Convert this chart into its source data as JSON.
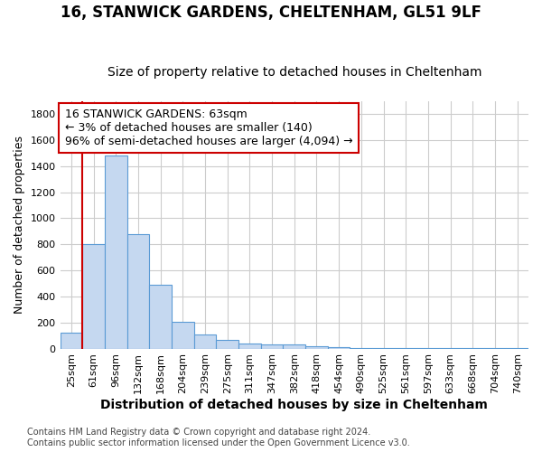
{
  "title1": "16, STANWICK GARDENS, CHELTENHAM, GL51 9LF",
  "title2": "Size of property relative to detached houses in Cheltenham",
  "xlabel": "Distribution of detached houses by size in Cheltenham",
  "ylabel": "Number of detached properties",
  "categories": [
    "25sqm",
    "61sqm",
    "96sqm",
    "132sqm",
    "168sqm",
    "204sqm",
    "239sqm",
    "275sqm",
    "311sqm",
    "347sqm",
    "382sqm",
    "418sqm",
    "454sqm",
    "490sqm",
    "525sqm",
    "561sqm",
    "597sqm",
    "633sqm",
    "668sqm",
    "704sqm",
    "740sqm"
  ],
  "values": [
    120,
    800,
    1480,
    880,
    490,
    205,
    105,
    65,
    40,
    35,
    30,
    20,
    10,
    5,
    4,
    3,
    2,
    2,
    1,
    2,
    1
  ],
  "bar_color": "#c5d8f0",
  "bar_edge_color": "#5b9bd5",
  "vline_color": "#cc0000",
  "vline_x_index": 1,
  "annotation_line1": "16 STANWICK GARDENS: 63sqm",
  "annotation_line2": "← 3% of detached houses are smaller (140)",
  "annotation_line3": "96% of semi-detached houses are larger (4,094) →",
  "annotation_box_color": "#ffffff",
  "annotation_box_edge": "#cc0000",
  "ylim": [
    0,
    1900
  ],
  "yticks": [
    0,
    200,
    400,
    600,
    800,
    1000,
    1200,
    1400,
    1600,
    1800
  ],
  "grid_color": "#cccccc",
  "footnote1": "Contains HM Land Registry data © Crown copyright and database right 2024.",
  "footnote2": "Contains public sector information licensed under the Open Government Licence v3.0.",
  "title1_fontsize": 12,
  "title2_fontsize": 10,
  "xlabel_fontsize": 10,
  "ylabel_fontsize": 9,
  "tick_fontsize": 8,
  "annot_fontsize": 9,
  "footnote_fontsize": 7
}
